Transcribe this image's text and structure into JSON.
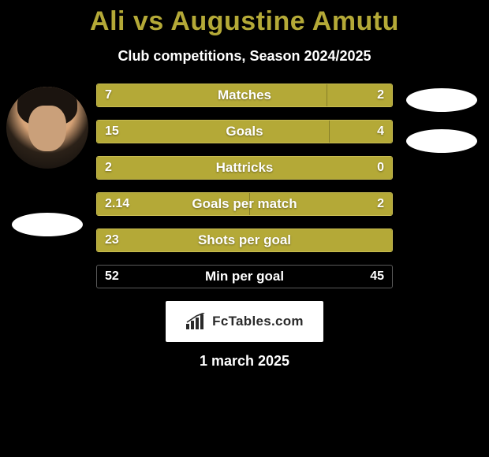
{
  "title_color": "#b4a937",
  "title": "Ali vs Augustine Amutu",
  "subtitle": "Club competitions, Season 2024/2025",
  "left_player_has_avatar": true,
  "colors": {
    "olive": "#b4a937",
    "olive_border": "#c9bd52",
    "transparent": "rgba(0,0,0,0)",
    "black_border": "#3a3a3a"
  },
  "stats": [
    {
      "label": "Matches",
      "left_val": "7",
      "right_val": "2",
      "left_pct": 78,
      "right_pct": 22,
      "left_color": "#b4a937",
      "right_color": "#b4a937",
      "border": "#c9bd52"
    },
    {
      "label": "Goals",
      "left_val": "15",
      "right_val": "4",
      "left_pct": 79,
      "right_pct": 21,
      "left_color": "#b4a937",
      "right_color": "#b4a937",
      "border": "#c9bd52"
    },
    {
      "label": "Hattricks",
      "left_val": "2",
      "right_val": "0",
      "left_pct": 100,
      "right_pct": 0,
      "left_color": "#b4a937",
      "right_color": "rgba(0,0,0,0)",
      "border": "#c9bd52"
    },
    {
      "label": "Goals per match",
      "left_val": "2.14",
      "right_val": "2",
      "left_pct": 52,
      "right_pct": 48,
      "left_color": "#b4a937",
      "right_color": "#b4a937",
      "border": "#c9bd52"
    },
    {
      "label": "Shots per goal",
      "left_val": "23",
      "right_val": "",
      "left_pct": 100,
      "right_pct": 0,
      "left_color": "#b4a937",
      "right_color": "rgba(0,0,0,0)",
      "border": "#c9bd52"
    },
    {
      "label": "Min per goal",
      "left_val": "52",
      "right_val": "45",
      "left_pct": 0,
      "right_pct": 0,
      "left_color": "rgba(0,0,0,0)",
      "right_color": "rgba(0,0,0,0)",
      "border": "#5a5a5a"
    }
  ],
  "footer_brand": "FcTables.com",
  "footer_date": "1 march 2025"
}
